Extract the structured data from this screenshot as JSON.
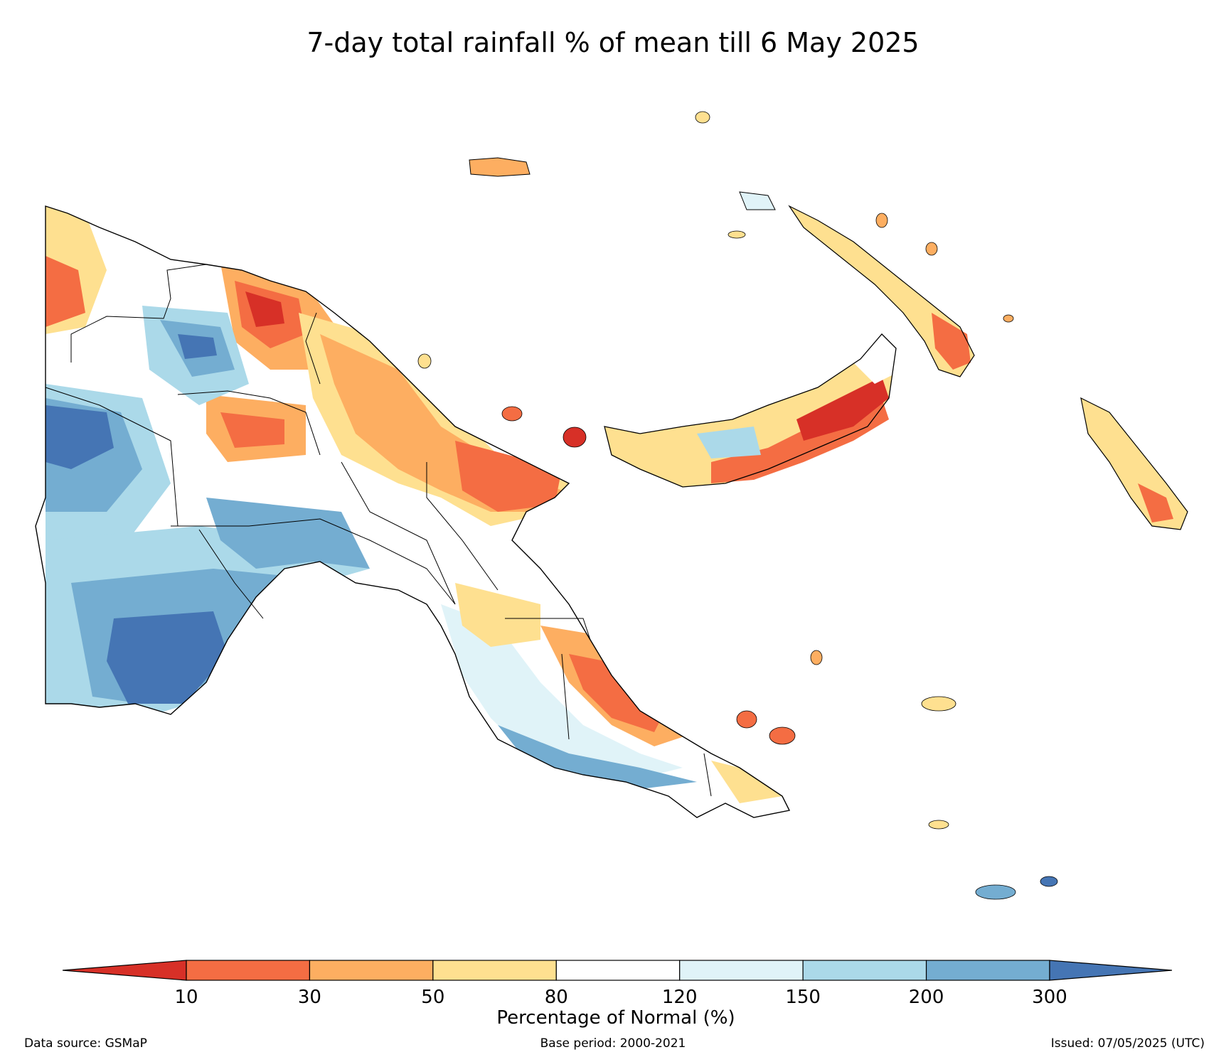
{
  "title": "7-day total rainfall % of mean till 6 May 2025",
  "colorbar": {
    "label": "Percentage of Normal (%)",
    "ticks": [
      "10",
      "30",
      "50",
      "80",
      "120",
      "150",
      "200",
      "300"
    ],
    "colors": [
      "#d73027",
      "#f46d43",
      "#fdae61",
      "#fee090",
      "#ffffff",
      "#e0f3f8",
      "#abd9e9",
      "#74add1",
      "#4575b4"
    ],
    "extend": "both"
  },
  "footer": {
    "source": "Data source: GSMaP",
    "base_period": "Base period: 2000-2021",
    "issued": "Issued: 07/05/2025 (UTC)"
  }
}
